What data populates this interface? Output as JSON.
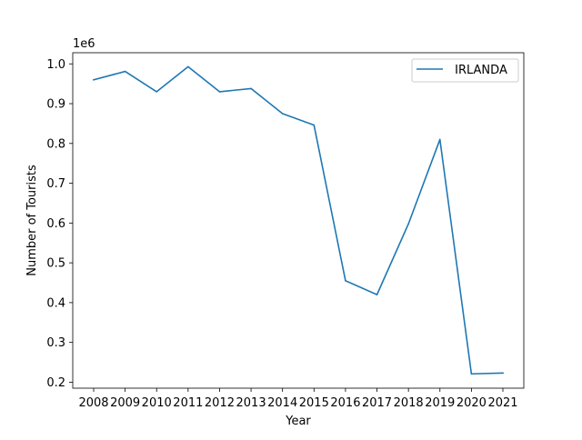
{
  "chart_data": {
    "type": "line",
    "title": "",
    "xlabel": "Year",
    "ylabel": "Number of Tourists",
    "y_scale_label": "1e6",
    "x": [
      "2008",
      "2009",
      "2010",
      "2011",
      "2012",
      "2013",
      "2014",
      "2015",
      "2016",
      "2017",
      "2018",
      "2019",
      "2020",
      "2021"
    ],
    "series": [
      {
        "name": " IRLANDA",
        "color": "#1f77b4",
        "values": [
          960000,
          981000,
          930000,
          993000,
          930000,
          938000,
          875000,
          846000,
          455000,
          420000,
          598000,
          810000,
          221000,
          223000
        ]
      }
    ],
    "ylim": [
      185000,
      1028000
    ],
    "y_ticks": [
      200000,
      300000,
      400000,
      500000,
      600000,
      700000,
      800000,
      900000,
      1000000
    ],
    "y_tick_labels": [
      "0.2",
      "0.3",
      "0.4",
      "0.5",
      "0.6",
      "0.7",
      "0.8",
      "0.9",
      "1.0"
    ],
    "grid": false,
    "legend_position": "top-right"
  }
}
